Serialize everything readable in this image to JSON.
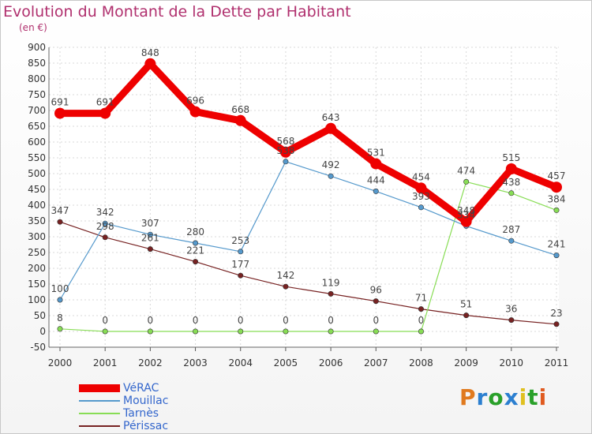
{
  "title": "Evolution du Montant de la Dette par Habitant",
  "subtitle": "(en €)",
  "logo": {
    "text": "Proxiti",
    "colors": [
      "#e07a1f",
      "#2b7fd0",
      "#2aa02a",
      "#2b7fd0",
      "#e0c020",
      "#2aa02a",
      "#e05a1f"
    ]
  },
  "chart_data": {
    "type": "line",
    "title": "Evolution du Montant de la Dette par Habitant",
    "ylabel": "(en €)",
    "xlabel": "",
    "x": [
      "2000",
      "2001",
      "2002",
      "2003",
      "2004",
      "2005",
      "2006",
      "2007",
      "2008",
      "2009",
      "2010",
      "2011"
    ],
    "ylim": [
      -50,
      900
    ],
    "yticks": [
      -50,
      0,
      50,
      100,
      150,
      200,
      250,
      300,
      350,
      400,
      450,
      500,
      550,
      600,
      650,
      700,
      750,
      800,
      850,
      900
    ],
    "grid": true,
    "legend_position": "bottom-left",
    "series": [
      {
        "name": "VéRAC",
        "color": "#ee0000",
        "values": [
          691,
          691,
          848,
          696,
          668,
          568,
          643,
          531,
          454,
          348,
          515,
          457
        ]
      },
      {
        "name": "Mouillac",
        "color": "#5599cc",
        "values": [
          100,
          342,
          307,
          280,
          253,
          538,
          492,
          444,
          393,
          334,
          287,
          241
        ]
      },
      {
        "name": "Tarnès",
        "color": "#88dd55",
        "values": [
          8,
          0,
          0,
          0,
          0,
          0,
          0,
          0,
          0,
          474,
          438,
          384
        ]
      },
      {
        "name": "Périssac",
        "color": "#772222",
        "values": [
          347,
          298,
          261,
          221,
          177,
          142,
          119,
          96,
          71,
          51,
          36,
          23
        ]
      }
    ],
    "point_labels": [
      {
        "text": "691",
        "x": "2000",
        "value": 691
      },
      {
        "text": "691",
        "x": "2001",
        "value": 691
      },
      {
        "text": "848",
        "x": "2002",
        "value": 848
      },
      {
        "text": "696",
        "x": "2003",
        "value": 696
      },
      {
        "text": "668",
        "x": "2004",
        "value": 668
      },
      {
        "text": "568",
        "x": "2005",
        "value": 568
      },
      {
        "text": "643",
        "x": "2006",
        "value": 643
      },
      {
        "text": "531",
        "x": "2007",
        "value": 531
      },
      {
        "text": "454",
        "x": "2008",
        "value": 454
      },
      {
        "text": "348",
        "x": "2009",
        "value": 348
      },
      {
        "text": "515",
        "x": "2010",
        "value": 515
      },
      {
        "text": "457",
        "x": "2011",
        "value": 457
      },
      {
        "text": "100",
        "x": "2000",
        "value": 100
      },
      {
        "text": "342",
        "x": "2001",
        "value": 342
      },
      {
        "text": "307",
        "x": "2002",
        "value": 307
      },
      {
        "text": "280",
        "x": "2003",
        "value": 280
      },
      {
        "text": "253",
        "x": "2004",
        "value": 253
      },
      {
        "text": "538",
        "x": "2005",
        "value": 538
      },
      {
        "text": "492",
        "x": "2006",
        "value": 492
      },
      {
        "text": "444",
        "x": "2007",
        "value": 444
      },
      {
        "text": "393",
        "x": "2008",
        "value": 393
      },
      {
        "text": "334",
        "x": "2009",
        "value": 334
      },
      {
        "text": "287",
        "x": "2010",
        "value": 287
      },
      {
        "text": "241",
        "x": "2011",
        "value": 241
      },
      {
        "text": "8",
        "x": "2000",
        "value": 8
      },
      {
        "text": "0",
        "x": "2001",
        "value": 0
      },
      {
        "text": "0",
        "x": "2002",
        "value": 0
      },
      {
        "text": "0",
        "x": "2003",
        "value": 0
      },
      {
        "text": "0",
        "x": "2004",
        "value": 0
      },
      {
        "text": "0",
        "x": "2005",
        "value": 0
      },
      {
        "text": "0",
        "x": "2006",
        "value": 0
      },
      {
        "text": "0",
        "x": "2007",
        "value": 0
      },
      {
        "text": "0",
        "x": "2008",
        "value": 0
      },
      {
        "text": "474",
        "x": "2009",
        "value": 474
      },
      {
        "text": "438",
        "x": "2010",
        "value": 438
      },
      {
        "text": "384",
        "x": "2011",
        "value": 384
      },
      {
        "text": "347",
        "x": "2000",
        "value": 347
      },
      {
        "text": "298",
        "x": "2001",
        "value": 298
      },
      {
        "text": "261",
        "x": "2002",
        "value": 261
      },
      {
        "text": "221",
        "x": "2003",
        "value": 221
      },
      {
        "text": "177",
        "x": "2004",
        "value": 177
      },
      {
        "text": "142",
        "x": "2005",
        "value": 142
      },
      {
        "text": "119",
        "x": "2006",
        "value": 119
      },
      {
        "text": "96",
        "x": "2007",
        "value": 96
      },
      {
        "text": "71",
        "x": "2008",
        "value": 71
      },
      {
        "text": "51",
        "x": "2009",
        "value": 51
      },
      {
        "text": "36",
        "x": "2010",
        "value": 36
      },
      {
        "text": "23",
        "x": "2011",
        "value": 23
      }
    ]
  }
}
